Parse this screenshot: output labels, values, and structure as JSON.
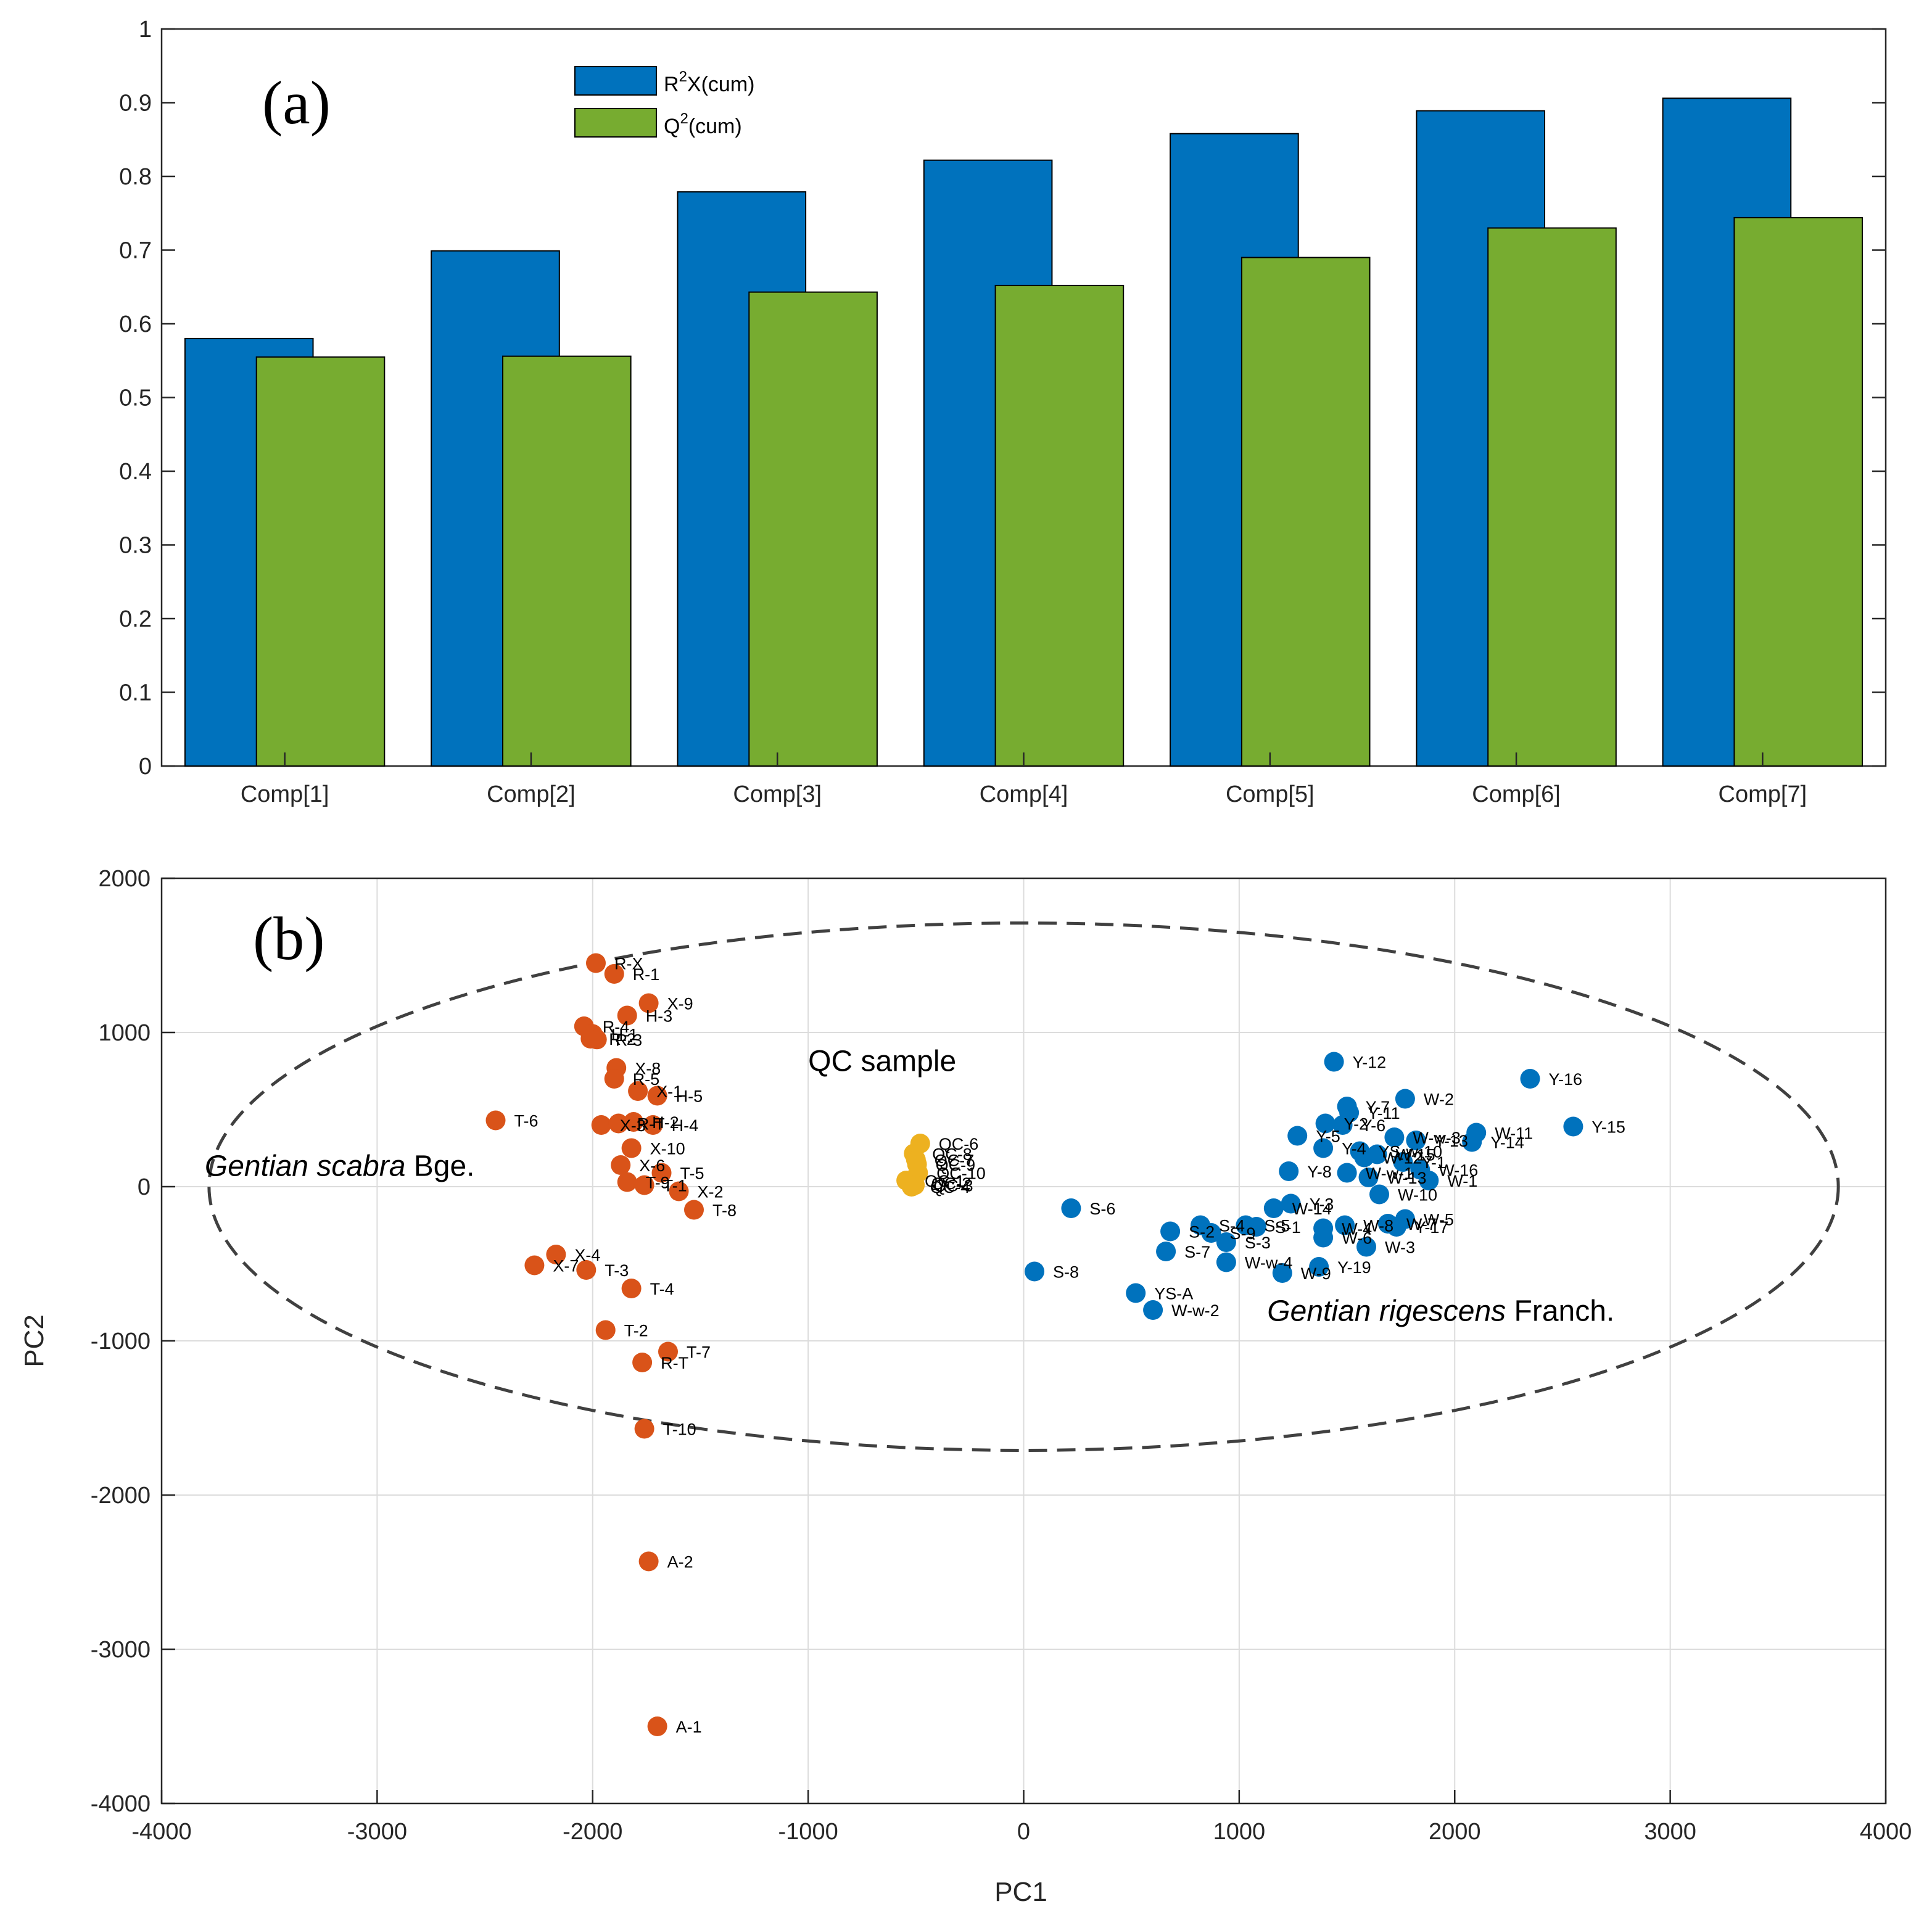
{
  "chart_data": [
    {
      "type": "bar",
      "panel_label": "(a)",
      "categories": [
        "Comp[1]",
        "Comp[2]",
        "Comp[3]",
        "Comp[4]",
        "Comp[5]",
        "Comp[6]",
        "Comp[7]"
      ],
      "series": [
        {
          "name": "R2X(cum)",
          "name_base": "R",
          "name_sup": "2",
          "name_rest": "X(cum)",
          "color": "#0072BD",
          "values": [
            0.58,
            0.699,
            0.779,
            0.822,
            0.858,
            0.889,
            0.906
          ]
        },
        {
          "name": "Q2(cum)",
          "name_base": "Q",
          "name_sup": "2",
          "name_rest": "(cum)",
          "color": "#77AC30",
          "values": [
            0.555,
            0.556,
            0.643,
            0.652,
            0.69,
            0.73,
            0.744
          ]
        }
      ],
      "ylim": [
        0,
        1
      ],
      "yticks": [
        "0",
        "0.1",
        "0.2",
        "0.3",
        "0.4",
        "0.5",
        "0.6",
        "0.7",
        "0.8",
        "0.9",
        "1"
      ],
      "legend_position": "top-left",
      "grid": false,
      "xlabel": "",
      "ylabel": ""
    },
    {
      "type": "scatter",
      "panel_label": "(b)",
      "xlabel": "PC1",
      "ylabel": "PC2",
      "xlim": [
        -4000,
        4000
      ],
      "ylim": [
        -4000,
        2000
      ],
      "xticks": [
        "-4000",
        "-3000",
        "-2000",
        "-1000",
        "0",
        "1000",
        "2000",
        "3000",
        "4000"
      ],
      "yticks": [
        "-4000",
        "-3000",
        "-2000",
        "-1000",
        "0",
        "1000",
        "2000"
      ],
      "grid": true,
      "ellipse": {
        "cx": 0,
        "cy": 0,
        "rx": 3780,
        "ry": 1710
      },
      "annotations": [
        {
          "text": "QC sample",
          "x": -1000,
          "y": 750
        },
        {
          "text_italic": "Gentian scabra",
          "text_normal": " Bge.",
          "x": -3800,
          "y": 70
        },
        {
          "text_italic": "Gentian rigescens",
          "text_normal": " Franch.",
          "x": 1130,
          "y": -870
        }
      ],
      "series": [
        {
          "name": "Gentian scabra",
          "color": "#D95319",
          "points": [
            {
              "label": "R-X",
              "x": -1985,
              "y": 1450
            },
            {
              "label": "R-1",
              "x": -1900,
              "y": 1380
            },
            {
              "label": "X-9",
              "x": -1740,
              "y": 1190
            },
            {
              "label": "H-3",
              "x": -1840,
              "y": 1110
            },
            {
              "label": "R-4",
              "x": -2040,
              "y": 1040
            },
            {
              "label": "H-1",
              "x": -2000,
              "y": 990
            },
            {
              "label": "R-2",
              "x": -2010,
              "y": 960
            },
            {
              "label": "R-3",
              "x": -1980,
              "y": 955
            },
            {
              "label": "X-8",
              "x": -1890,
              "y": 770
            },
            {
              "label": "R-5",
              "x": -1900,
              "y": 700
            },
            {
              "label": "X-1",
              "x": -1790,
              "y": 620
            },
            {
              "label": "H-5",
              "x": -1700,
              "y": 590
            },
            {
              "label": "T-6",
              "x": -2450,
              "y": 430
            },
            {
              "label": "X-3",
              "x": -1960,
              "y": 400
            },
            {
              "label": "R-T",
              "x": -1880,
              "y": 410
            },
            {
              "label": "H-2",
              "x": -1810,
              "y": 420
            },
            {
              "label": "H-4",
              "x": -1720,
              "y": 400
            },
            {
              "label": "X-10",
              "x": -1820,
              "y": 250
            },
            {
              "label": "X-6",
              "x": -1870,
              "y": 140
            },
            {
              "label": "T-5",
              "x": -1680,
              "y": 90
            },
            {
              "label": "T-9",
              "x": -1840,
              "y": 30
            },
            {
              "label": "T-1",
              "x": -1760,
              "y": 10
            },
            {
              "label": "X-2",
              "x": -1600,
              "y": -30
            },
            {
              "label": "T-8",
              "x": -1530,
              "y": -150
            },
            {
              "label": "X-4",
              "x": -2170,
              "y": -440
            },
            {
              "label": "X-7",
              "x": -2270,
              "y": -510
            },
            {
              "label": "T-3",
              "x": -2030,
              "y": -540
            },
            {
              "label": "T-4",
              "x": -1820,
              "y": -660
            },
            {
              "label": "T-2",
              "x": -1940,
              "y": -930
            },
            {
              "label": "T-7",
              "x": -1650,
              "y": -1070
            },
            {
              "label": "R-T",
              "x": -1770,
              "y": -1140
            },
            {
              "label": "T-10",
              "x": -1760,
              "y": -1570
            },
            {
              "label": "A-2",
              "x": -1740,
              "y": -2430
            },
            {
              "label": "A-1",
              "x": -1700,
              "y": -3500
            }
          ]
        },
        {
          "name": "QC",
          "color": "#EDB120",
          "points": [
            {
              "label": "QC-6",
              "x": -480,
              "y": 280
            },
            {
              "label": "QC-8",
              "x": -510,
              "y": 215
            },
            {
              "label": "QC-7",
              "x": -500,
              "y": 175
            },
            {
              "label": "QC-9",
              "x": -495,
              "y": 145
            },
            {
              "label": "QC-10",
              "x": -490,
              "y": 90
            },
            {
              "label": "QC-1",
              "x": -545,
              "y": 40
            },
            {
              "label": "QC-2",
              "x": -515,
              "y": 25
            },
            {
              "label": "QC-3",
              "x": -505,
              "y": 10
            },
            {
              "label": "QC-4",
              "x": -520,
              "y": 0
            }
          ]
        },
        {
          "name": "Gentian rigescens",
          "color": "#0072BD",
          "points": [
            {
              "label": "Y-12",
              "x": 1440,
              "y": 810
            },
            {
              "label": "Y-16",
              "x": 2350,
              "y": 700
            },
            {
              "label": "W-2",
              "x": 1770,
              "y": 570
            },
            {
              "label": "Y-7",
              "x": 1500,
              "y": 520
            },
            {
              "label": "Y-11",
              "x": 1510,
              "y": 480
            },
            {
              "label": "Y-15",
              "x": 2550,
              "y": 390
            },
            {
              "label": "Y-2",
              "x": 1400,
              "y": 410
            },
            {
              "label": "Y-6",
              "x": 1480,
              "y": 400
            },
            {
              "label": "W-11",
              "x": 2100,
              "y": 350
            },
            {
              "label": "Y-14",
              "x": 2080,
              "y": 290
            },
            {
              "label": "Y-5",
              "x": 1270,
              "y": 330
            },
            {
              "label": "W-w-3",
              "x": 1720,
              "y": 320
            },
            {
              "label": "Y-13",
              "x": 1820,
              "y": 300
            },
            {
              "label": "Y-4",
              "x": 1390,
              "y": 250
            },
            {
              "label": "YS-w-10",
              "x": 1560,
              "y": 230
            },
            {
              "label": "W-15",
              "x": 1640,
              "y": 210
            },
            {
              "label": "W-12",
              "x": 1580,
              "y": 190
            },
            {
              "label": "Y-1",
              "x": 1760,
              "y": 160
            },
            {
              "label": "W-16",
              "x": 1840,
              "y": 110
            },
            {
              "label": "Y-8",
              "x": 1230,
              "y": 100
            },
            {
              "label": "W-w-1",
              "x": 1500,
              "y": 90
            },
            {
              "label": "W-13",
              "x": 1600,
              "y": 60
            },
            {
              "label": "W-1",
              "x": 1880,
              "y": 40
            },
            {
              "label": "W-10",
              "x": 1650,
              "y": -50
            },
            {
              "label": "Y-3",
              "x": 1240,
              "y": -110
            },
            {
              "label": "W-14",
              "x": 1160,
              "y": -140
            },
            {
              "label": "S-6",
              "x": 220,
              "y": -140
            },
            {
              "label": "W-5",
              "x": 1770,
              "y": -210
            },
            {
              "label": "W-7",
              "x": 1690,
              "y": -240
            },
            {
              "label": "Y-17",
              "x": 1730,
              "y": -260
            },
            {
              "label": "W-8",
              "x": 1490,
              "y": -250
            },
            {
              "label": "W-4",
              "x": 1390,
              "y": -270
            },
            {
              "label": "S-5",
              "x": 1030,
              "y": -250
            },
            {
              "label": "S-1",
              "x": 1080,
              "y": -260
            },
            {
              "label": "S-4",
              "x": 820,
              "y": -250
            },
            {
              "label": "S-9",
              "x": 870,
              "y": -300
            },
            {
              "label": "W-6",
              "x": 1390,
              "y": -330
            },
            {
              "label": "S-3",
              "x": 940,
              "y": -360
            },
            {
              "label": "S-2",
              "x": 680,
              "y": -290
            },
            {
              "label": "S-7",
              "x": 660,
              "y": -420
            },
            {
              "label": "W-3",
              "x": 1590,
              "y": -390
            },
            {
              "label": "W-w-4",
              "x": 940,
              "y": -490
            },
            {
              "label": "Y-19",
              "x": 1370,
              "y": -520
            },
            {
              "label": "W-9",
              "x": 1200,
              "y": -560
            },
            {
              "label": "S-8",
              "x": 50,
              "y": -550
            },
            {
              "label": "YS-A",
              "x": 520,
              "y": -690
            },
            {
              "label": "W-w-2",
              "x": 600,
              "y": -800
            }
          ]
        }
      ]
    }
  ]
}
